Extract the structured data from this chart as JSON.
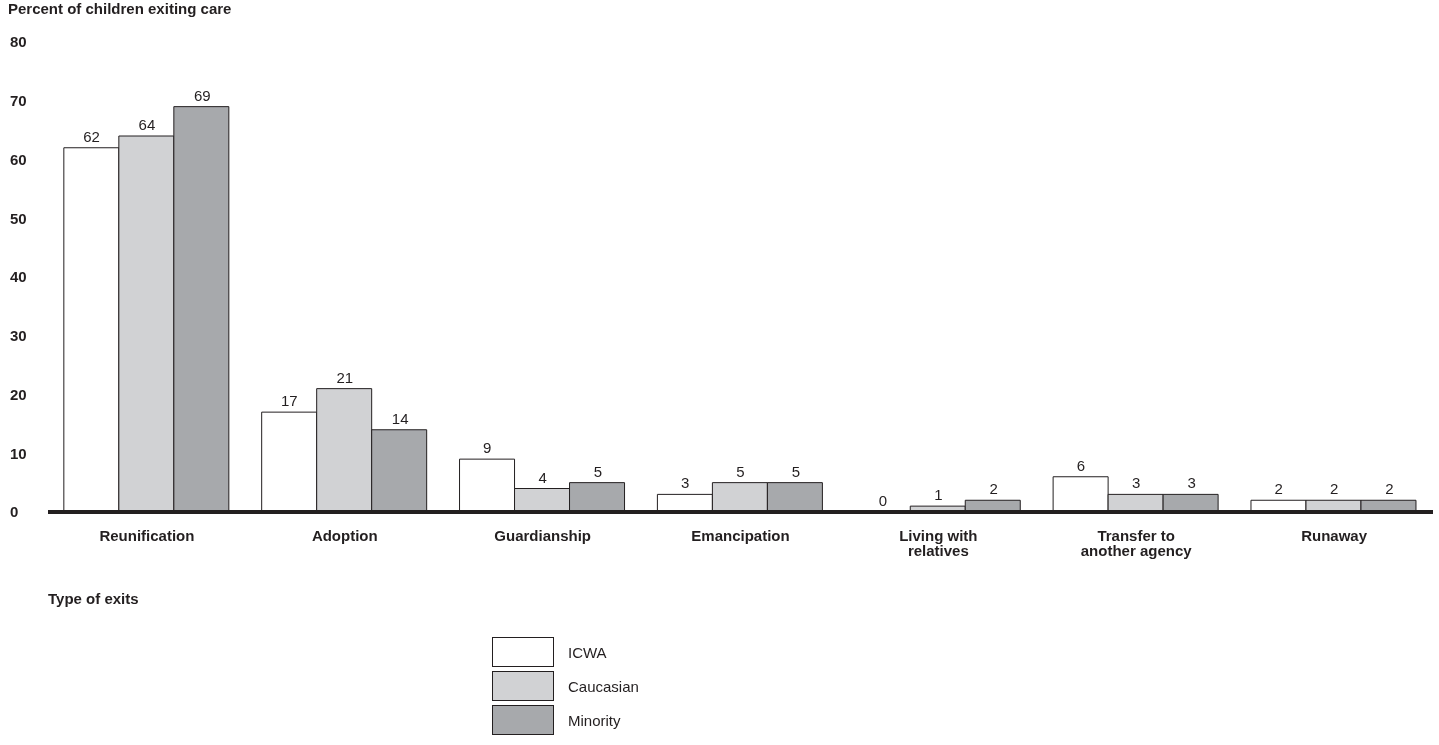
{
  "chart_data": {
    "type": "bar",
    "ylabel": "Percent of children exiting care",
    "xlabel": "Type of exits",
    "categories": [
      "Reunification",
      "Adoption",
      "Guardianship",
      "Emancipation",
      "Living with relatives",
      "Transfer to another agency",
      "Runaway"
    ],
    "series": [
      {
        "name": "ICWA",
        "color": "#ffffff",
        "values": [
          62,
          17,
          9,
          3,
          0,
          6,
          2
        ]
      },
      {
        "name": "Caucasian",
        "color": "#d1d2d4",
        "values": [
          64,
          21,
          4,
          5,
          1,
          3,
          2
        ]
      },
      {
        "name": "Minority",
        "color": "#a7a9ac",
        "values": [
          69,
          14,
          5,
          5,
          2,
          3,
          2
        ]
      }
    ],
    "ylim": [
      0,
      80
    ],
    "yticks": [
      0,
      10,
      20,
      30,
      40,
      50,
      60,
      70,
      80
    ],
    "grid": false,
    "legend": "bottom",
    "data_labels": true
  }
}
